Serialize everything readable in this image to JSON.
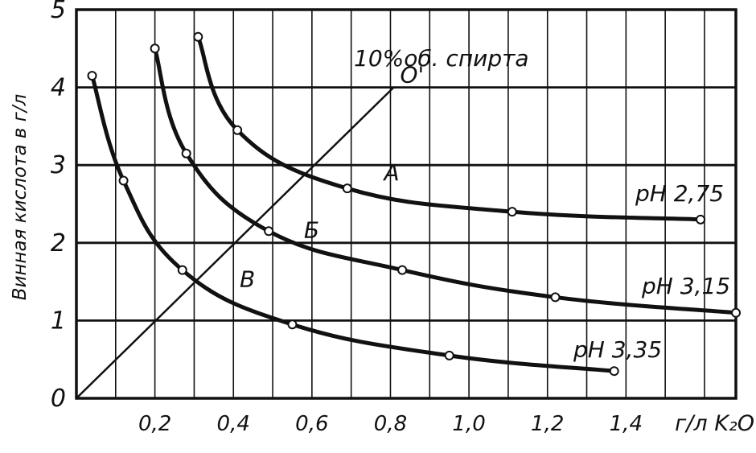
{
  "chart_data": {
    "type": "line",
    "title": "10%об. спирта",
    "xlabel": "г/л K₂O",
    "ylabel": "Винная кислота в г/л",
    "xlim": [
      0,
      1.68
    ],
    "ylim": [
      0,
      5
    ],
    "x_ticks": [
      {
        "value": 0.2,
        "label": "0,2"
      },
      {
        "value": 0.4,
        "label": "0,4"
      },
      {
        "value": 0.6,
        "label": "0,6"
      },
      {
        "value": 0.8,
        "label": "0,8"
      },
      {
        "value": 1.0,
        "label": "1,0"
      },
      {
        "value": 1.2,
        "label": "1,2"
      },
      {
        "value": 1.4,
        "label": "1,4"
      }
    ],
    "y_ticks": [
      {
        "value": 0,
        "label": "0"
      },
      {
        "value": 1,
        "label": "1"
      },
      {
        "value": 2,
        "label": "2"
      },
      {
        "value": 3,
        "label": "3"
      },
      {
        "value": 4,
        "label": "4"
      },
      {
        "value": 5,
        "label": "5"
      }
    ],
    "grid": true,
    "series": [
      {
        "name": "pH 2,75",
        "x": [
          0.31,
          0.41,
          0.69,
          1.11,
          1.59
        ],
        "y": [
          4.65,
          3.45,
          2.7,
          2.4,
          2.3
        ]
      },
      {
        "name": "pH 3,15",
        "x": [
          0.2,
          0.28,
          0.49,
          0.83,
          1.22,
          1.68
        ],
        "y": [
          4.5,
          3.15,
          2.15,
          1.65,
          1.3,
          1.1
        ]
      },
      {
        "name": "pH 3,35",
        "x": [
          0.04,
          0.12,
          0.27,
          0.55,
          0.95,
          1.37
        ],
        "y": [
          4.15,
          2.8,
          1.65,
          0.95,
          0.55,
          0.35
        ]
      }
    ],
    "reference_line": {
      "label": "O'",
      "x": [
        0,
        0.8
      ],
      "y": [
        0,
        4
      ]
    },
    "annotations": [
      {
        "text": "А",
        "x": 0.8,
        "y": 2.62
      },
      {
        "text": "Б",
        "x": 0.6,
        "y": 1.9
      },
      {
        "text": "В",
        "x": 0.42,
        "y": 1.25
      }
    ]
  }
}
